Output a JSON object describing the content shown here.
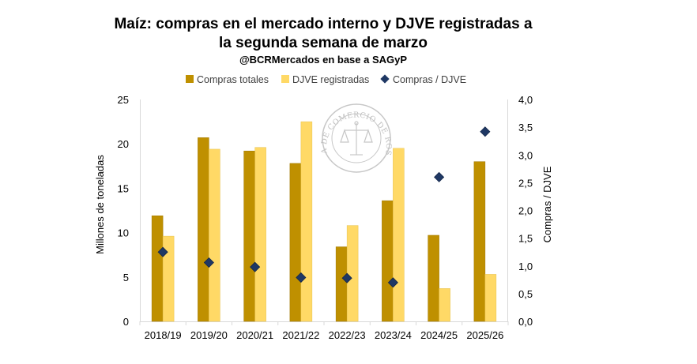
{
  "chart_data": {
    "type": "bar",
    "title_line1": "Maíz: compras en el mercado interno y DJVE registradas a",
    "title_line2": "la segunda semana de marzo",
    "subtitle": "@BCRMercados en base a SAGyP",
    "categories": [
      "2018/19",
      "2019/20",
      "2020/21",
      "2021/22",
      "2022/23",
      "2023/24",
      "2024/25",
      "2025/26"
    ],
    "series": [
      {
        "name": "Compras totales",
        "type": "bar",
        "axis": "left",
        "color": "#BF9000",
        "values": [
          11.9,
          20.7,
          19.2,
          17.8,
          8.4,
          13.6,
          9.7,
          18.0
        ]
      },
      {
        "name": "DJVE registradas",
        "type": "bar",
        "axis": "left",
        "color": "#FFD966",
        "values": [
          9.6,
          19.4,
          19.6,
          22.5,
          10.8,
          19.5,
          3.7,
          5.3
        ]
      },
      {
        "name": "Compras / DJVE",
        "type": "scatter",
        "axis": "right",
        "color": "#1F3864",
        "values": [
          1.25,
          1.06,
          0.98,
          0.79,
          0.78,
          0.7,
          2.6,
          3.42
        ]
      }
    ],
    "ylabel": "Millones de toneladas",
    "y2label": "Compras / DJVE",
    "ylim": [
      0,
      25
    ],
    "y2lim": [
      0,
      4
    ],
    "yticks": [
      "0",
      "5",
      "10",
      "15",
      "20",
      "25"
    ],
    "y2ticks": [
      "0,0",
      "0,5",
      "1,0",
      "1,5",
      "2,0",
      "2,5",
      "3,0",
      "3,5",
      "4,0"
    ],
    "legend_position": "top",
    "grid": false
  },
  "watermark": {
    "text": "BOLSA DE COMERCIO DE ROSARIO"
  }
}
